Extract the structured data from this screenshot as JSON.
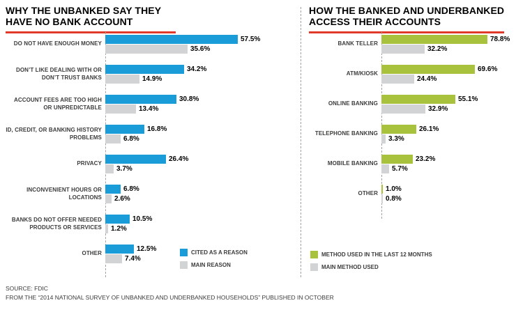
{
  "chart_data": [
    {
      "id": "left",
      "type": "bar",
      "orientation": "horizontal",
      "title": "WHY THE UNBANKED SAY THEY HAVE NO BANK ACCOUNT",
      "title_lines": [
        "WHY THE UNBANKED SAY THEY",
        "HAVE NO BANK ACCOUNT"
      ],
      "categories": [
        "DO NOT HAVE ENOUGH MONEY",
        "DON’T LIKE DEALING WITH OR DON’T TRUST BANKS",
        "ACCOUNT FEES ARE TOO HIGH OR UNPREDICTABLE",
        "ID, CREDIT, OR BANKING HISTORY PROBLEMS",
        "PRIVACY",
        "INCONVENIENT HOURS OR LOCATIONS",
        "BANKS DO NOT OFFER NEEDED PRODUCTS OR SERVICES",
        "OTHER"
      ],
      "series": [
        {
          "name": "CITED AS A REASON",
          "color": "#1a9cd8",
          "values": [
            57.5,
            34.2,
            30.8,
            16.8,
            26.4,
            6.8,
            10.5,
            12.5
          ]
        },
        {
          "name": "MAIN REASON",
          "color": "#d1d3d4",
          "values": [
            35.6,
            14.9,
            13.4,
            6.8,
            3.7,
            2.6,
            1.2,
            7.4
          ]
        }
      ],
      "value_suffix": "%",
      "xlabel": "",
      "ylabel": "",
      "xlim": [
        0,
        60
      ],
      "grid": false,
      "legend_position": "bottom-right-inside"
    },
    {
      "id": "right",
      "type": "bar",
      "orientation": "horizontal",
      "title": "HOW THE BANKED AND UNDERBANKED ACCESS THEIR ACCOUNTS",
      "title_lines": [
        "HOW THE BANKED AND UNDERBANKED",
        "ACCESS THEIR ACCOUNTS"
      ],
      "categories": [
        "BANK TELLER",
        "ATM/KIOSK",
        "ONLINE BANKING",
        "TELEPHONE BANKING",
        "MOBILE BANKING",
        "OTHER"
      ],
      "series": [
        {
          "name": "METHOD USED IN THE LAST 12 MONTHS",
          "color": "#a9c23d",
          "values": [
            78.8,
            69.6,
            55.1,
            26.1,
            23.2,
            1.0
          ]
        },
        {
          "name": "MAIN METHOD USED",
          "color": "#d1d3d4",
          "values": [
            32.2,
            24.4,
            32.9,
            3.3,
            5.7,
            0.8
          ]
        }
      ],
      "value_suffix": "%",
      "xlabel": "",
      "ylabel": "",
      "xlim": [
        0,
        80
      ],
      "grid": false,
      "legend_position": "bottom-left-inside"
    }
  ],
  "footer": {
    "line1": "SOURCE: FDIC",
    "line2": "FROM THE “2014 NATIONAL SURVEY OF UNBANKED AND UNDERBANKED HOUSEHOLDS” PUBLISHED IN OCTOBER"
  },
  "palette": {
    "accent_red": "#e13a2a",
    "cited_blue": "#1a9cd8",
    "method_green": "#a9c23d",
    "secondary_gray": "#d1d3d4"
  }
}
